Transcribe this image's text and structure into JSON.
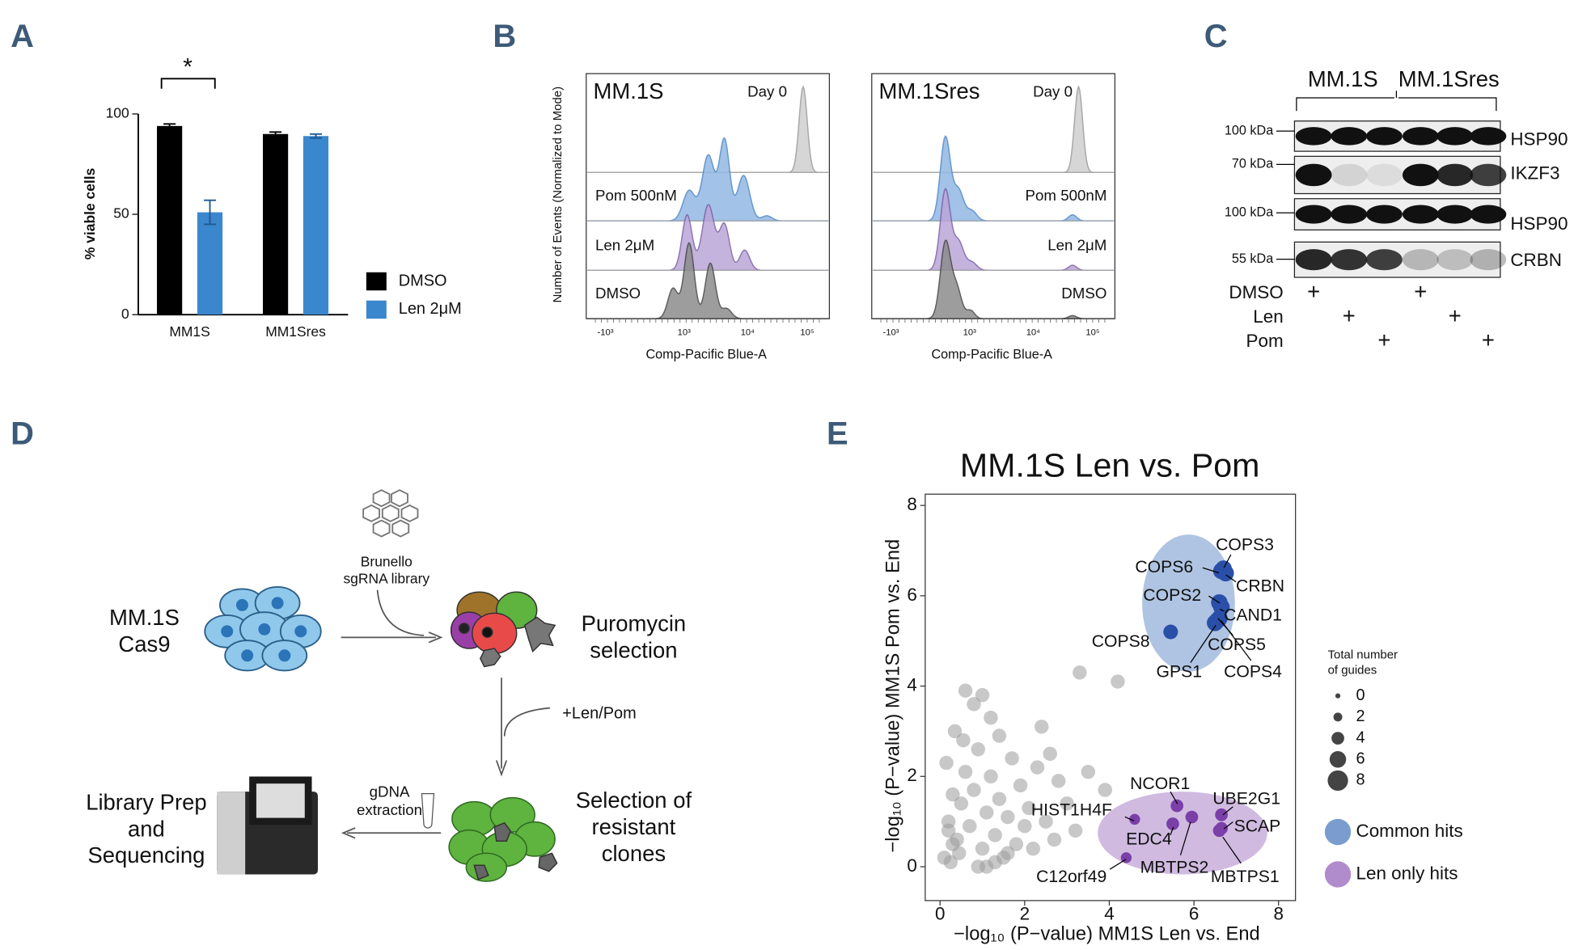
{
  "panel_labels": [
    "A",
    "B",
    "C",
    "D",
    "E"
  ],
  "chart_data": [
    {
      "type": "bar",
      "ylabel": "% viable cells",
      "categories": [
        "MM1S",
        "MM1Sres"
      ],
      "series": [
        {
          "name": "DMSO",
          "color": "#000000",
          "values": [
            94,
            90
          ],
          "errors": [
            1,
            1
          ]
        },
        {
          "name": "Len 2μM",
          "color": "#3b87cd",
          "values": [
            51,
            89
          ],
          "errors": [
            6,
            1
          ]
        }
      ],
      "ylim": [
        0,
        100
      ],
      "yticks": [
        0,
        50,
        100
      ],
      "annotation": "*"
    },
    {
      "type": "scatter",
      "title": "MM.1S Len vs. Pom",
      "xlabel": "−log₁₀ (P−value) MM1S Len vs. End",
      "ylabel": "−log₁₀ (P−value) MM1S Pom vs. End",
      "xlim": [
        -0.35,
        8.4
      ],
      "ylim": [
        -0.75,
        8.25
      ],
      "xticks": [
        0,
        2,
        4,
        6,
        8
      ],
      "yticks": [
        0,
        2,
        4,
        6,
        8
      ],
      "series": [
        {
          "name": "Common hits",
          "color": "#2a4fa8",
          "labels": [
            "COPS3",
            "COPS6",
            "CRBN",
            "COPS2",
            "CAND1",
            "COPS5",
            "COPS4",
            "GPS1",
            "COPS8"
          ],
          "x": [
            6.7,
            6.65,
            6.75,
            6.6,
            6.65,
            6.55,
            6.6,
            6.5,
            5.45
          ],
          "y": [
            6.6,
            6.55,
            6.5,
            5.85,
            5.75,
            5.45,
            5.5,
            5.4,
            5.2
          ],
          "sizes": [
            6,
            6,
            6,
            6,
            6,
            6,
            6,
            6,
            5
          ]
        },
        {
          "name": "Len only hits",
          "color": "#7b3fa8",
          "labels": [
            "NCOR1",
            "HIST1H4F",
            "UBE2G1",
            "SCAP",
            "EDC4",
            "MBTPS2",
            "MBTPS1",
            "C12orf49"
          ],
          "x": [
            5.6,
            4.6,
            6.65,
            6.65,
            5.5,
            5.95,
            6.6,
            4.4
          ],
          "y": [
            1.35,
            1.05,
            1.15,
            0.85,
            0.95,
            1.1,
            0.8,
            0.2
          ],
          "sizes": [
            4,
            3,
            4,
            4,
            4,
            4,
            4,
            3
          ]
        },
        {
          "color": "#9a9a9a",
          "x": [
            0.1,
            0.2,
            0.3,
            0.15,
            0.4,
            0.5,
            0.6,
            0.25,
            0.7,
            0.8,
            0.9,
            1.0,
            1.1,
            1.2,
            1.3,
            0.35,
            0.45,
            0.55,
            1.4,
            1.5,
            1.6,
            1.7,
            1.8,
            1.9,
            2.0,
            2.1,
            2.2,
            2.3,
            2.5,
            2.7,
            3.0,
            3.2,
            3.5,
            3.9,
            4.2,
            1.0,
            1.2,
            1.4,
            0.8,
            0.6,
            2.4,
            2.6,
            1.1,
            1.3,
            0.9,
            0.3,
            0.2,
            1.6,
            2.8,
            3.3
          ],
          "y": [
            0.2,
            1.0,
            1.6,
            2.3,
            0.6,
            1.4,
            2.1,
            0.1,
            0.9,
            1.7,
            2.6,
            0.4,
            1.2,
            2.0,
            0.7,
            3.0,
            0.3,
            2.8,
            1.5,
            0.2,
            1.1,
            2.4,
            0.5,
            1.8,
            0.9,
            1.3,
            0.4,
            2.2,
            1.0,
            0.6,
            1.4,
            0.8,
            2.1,
            1.7,
            4.1,
            3.8,
            3.3,
            2.9,
            3.6,
            3.9,
            3.1,
            2.5,
            0.0,
            0.1,
            0.0,
            0.5,
            0.8,
            0.3,
            1.9,
            4.3
          ]
        }
      ],
      "size_legend": {
        "title": [
          "Total number",
          "of guides"
        ],
        "values": [
          0,
          2,
          4,
          6,
          8
        ]
      }
    }
  ],
  "flow": {
    "plots": [
      {
        "title": "MM.1S",
        "rows": [
          "Day 0",
          "Pom 500nM",
          "Len 2μM",
          "DMSO"
        ]
      },
      {
        "title": "MM.1Sres",
        "rows": [
          "Day 0",
          "Pom 500nM",
          "Len 2μM",
          "DMSO"
        ]
      }
    ],
    "xlabel": "Comp-Pacific Blue-A",
    "ylabel": "Number of Events (Normalized to Mode)",
    "xtick_labels": [
      "-10³",
      "10³",
      "10⁴",
      "10⁵"
    ]
  },
  "blot": {
    "groups": [
      "MM.1S",
      "MM.1Sres"
    ],
    "markers": [
      "100 kDa",
      "70 kDa",
      "100 kDa",
      "55 kDa"
    ],
    "proteins": [
      "HSP90",
      "IKZF3",
      "HSP90",
      "CRBN"
    ],
    "treatments": [
      "DMSO",
      "Len",
      "Pom"
    ],
    "mark": "+"
  },
  "diagram": {
    "start": [
      "MM.1S",
      "Cas9"
    ],
    "library": [
      "Brunello",
      "sgRNA library"
    ],
    "step1": [
      "Puromycin",
      "selection"
    ],
    "drug": "+Len/Pom",
    "step2": [
      "Selection of",
      "resistant",
      "clones"
    ],
    "extraction": [
      "gDNA",
      "extraction"
    ],
    "step3": [
      "Library Prep",
      "and",
      "Sequencing"
    ]
  }
}
